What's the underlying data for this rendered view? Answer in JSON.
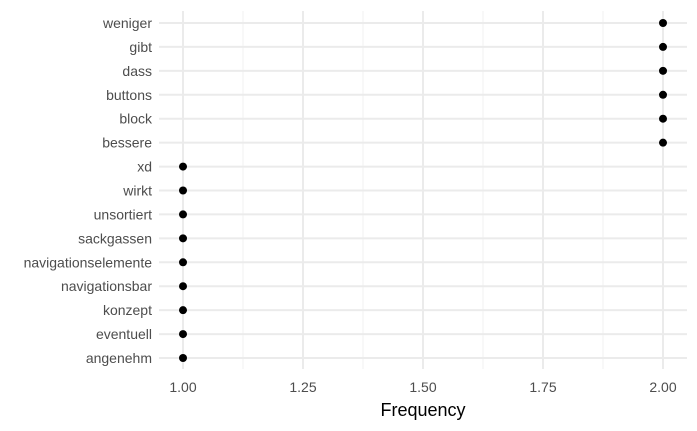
{
  "chart_data": {
    "type": "scatter",
    "title": "",
    "xlabel": "Frequency",
    "ylabel": "",
    "xlim": [
      0.95,
      2.05
    ],
    "x_ticks": [
      1.0,
      1.25,
      1.5,
      1.75,
      2.0
    ],
    "x_tick_labels": [
      "1.00",
      "1.25",
      "1.50",
      "1.75",
      "2.00"
    ],
    "grid": true,
    "legend": "none",
    "point_color": "#000000",
    "categories": [
      "weniger",
      "gibt",
      "dass",
      "buttons",
      "block",
      "bessere",
      "xd",
      "wirkt",
      "unsortiert",
      "sackgassen",
      "navigationselemente",
      "navigationsbar",
      "konzept",
      "eventuell",
      "angenehm"
    ],
    "values": [
      2,
      2,
      2,
      2,
      2,
      2,
      1,
      1,
      1,
      1,
      1,
      1,
      1,
      1,
      1
    ]
  }
}
